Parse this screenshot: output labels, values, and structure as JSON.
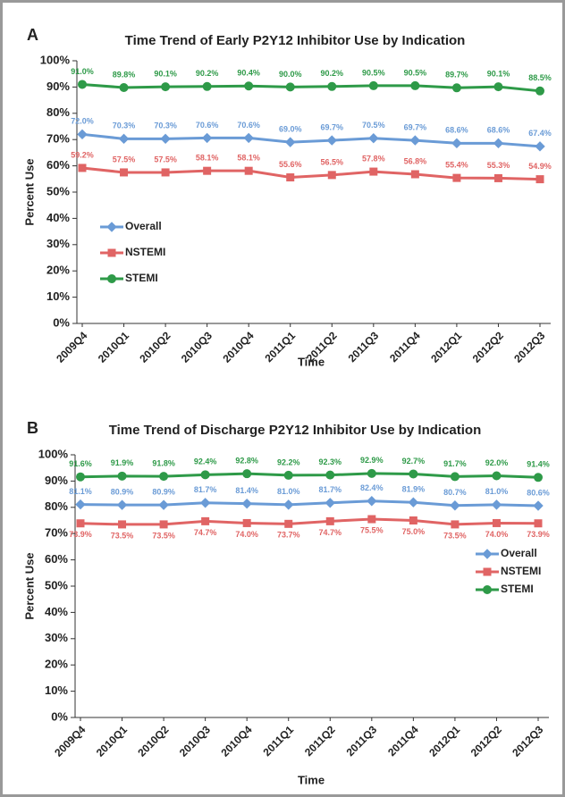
{
  "chart_data": [
    {
      "type": "line",
      "panel": "A",
      "title": "Time Trend of Early P2Y12 Inhibitor Use by Indication",
      "x_label": "Time",
      "y_label": "Percent Use",
      "categories": [
        "2009Q4",
        "2010Q1",
        "2010Q2",
        "2010Q3",
        "2010Q4",
        "2011Q1",
        "2011Q2",
        "2011Q3",
        "2011Q4",
        "2012Q1",
        "2012Q2",
        "2012Q3"
      ],
      "ylim": [
        0,
        100
      ],
      "yticks": [
        {
          "value": 0,
          "label": "0%"
        },
        {
          "value": 10,
          "label": "10%"
        },
        {
          "value": 20,
          "label": "20%"
        },
        {
          "value": 30,
          "label": "30%"
        },
        {
          "value": 40,
          "label": "40%"
        },
        {
          "value": 50,
          "label": "50%"
        },
        {
          "value": 60,
          "label": "60%"
        },
        {
          "value": 70,
          "label": "70%"
        },
        {
          "value": 80,
          "label": "80%"
        },
        {
          "value": 90,
          "label": "90%"
        },
        {
          "value": 100,
          "label": "100%"
        }
      ],
      "legend": "left",
      "series": [
        {
          "name": "Overall",
          "color": "#6a9bd6",
          "marker": "diamond",
          "label_position": "above",
          "values": [
            72.0,
            70.3,
            70.3,
            70.6,
            70.6,
            69.0,
            69.7,
            70.5,
            69.7,
            68.6,
            68.6,
            67.4
          ],
          "value_labels": [
            "72.0%",
            "70.3%",
            "70.3%",
            "70.6%",
            "70.6%",
            "69.0%",
            "69.7%",
            "70.5%",
            "69.7%",
            "68.6%",
            "68.6%",
            "67.4%"
          ]
        },
        {
          "name": "NSTEMI",
          "color": "#e06464",
          "marker": "square",
          "label_position": "above",
          "values": [
            59.2,
            57.5,
            57.5,
            58.1,
            58.1,
            55.6,
            56.5,
            57.8,
            56.8,
            55.4,
            55.3,
            54.9
          ],
          "value_labels": [
            "59.2%",
            "57.5%",
            "57.5%",
            "58.1%",
            "58.1%",
            "55.6%",
            "56.5%",
            "57.8%",
            "56.8%",
            "55.4%",
            "55.3%",
            "54.9%"
          ]
        },
        {
          "name": "STEMI",
          "color": "#2e9a48",
          "marker": "circle",
          "label_position": "above",
          "values": [
            91.0,
            89.8,
            90.1,
            90.2,
            90.4,
            90.0,
            90.2,
            90.5,
            90.5,
            89.7,
            90.1,
            88.5
          ],
          "value_labels": [
            "91.0%",
            "89.8%",
            "90.1%",
            "90.2%",
            "90.4%",
            "90.0%",
            "90.2%",
            "90.5%",
            "90.5%",
            "89.7%",
            "90.1%",
            "88.5%"
          ]
        }
      ]
    },
    {
      "type": "line",
      "panel": "B",
      "title": "Time Trend of Discharge P2Y12 Inhibitor Use by Indication",
      "x_label": "Time",
      "y_label": "Percent Use",
      "categories": [
        "2009Q4",
        "2010Q1",
        "2010Q2",
        "2010Q3",
        "2010Q4",
        "2011Q1",
        "2011Q2",
        "2011Q3",
        "2011Q4",
        "2012Q1",
        "2012Q2",
        "2012Q3"
      ],
      "ylim": [
        0,
        100
      ],
      "yticks": [
        {
          "value": 0,
          "label": "0%"
        },
        {
          "value": 10,
          "label": "10%"
        },
        {
          "value": 20,
          "label": "20%"
        },
        {
          "value": 30,
          "label": "30%"
        },
        {
          "value": 40,
          "label": "40%"
        },
        {
          "value": 50,
          "label": "50%"
        },
        {
          "value": 60,
          "label": "60%"
        },
        {
          "value": 70,
          "label": "70%"
        },
        {
          "value": 80,
          "label": "80%"
        },
        {
          "value": 90,
          "label": "90%"
        },
        {
          "value": 100,
          "label": "100%"
        }
      ],
      "legend": "right",
      "series": [
        {
          "name": "Overall",
          "color": "#6a9bd6",
          "marker": "diamond",
          "label_position": "above",
          "values": [
            81.1,
            80.9,
            80.9,
            81.7,
            81.4,
            81.0,
            81.7,
            82.4,
            81.9,
            80.7,
            81.0,
            80.6
          ],
          "value_labels": [
            "81.1%",
            "80.9%",
            "80.9%",
            "81.7%",
            "81.4%",
            "81.0%",
            "81.7%",
            "82.4%",
            "81.9%",
            "80.7%",
            "81.0%",
            "80.6%"
          ]
        },
        {
          "name": "NSTEMI",
          "color": "#e06464",
          "marker": "square",
          "label_position": "below",
          "values": [
            73.9,
            73.5,
            73.5,
            74.7,
            74.0,
            73.7,
            74.7,
            75.5,
            75.0,
            73.5,
            74.0,
            73.9
          ],
          "value_labels": [
            "73.9%",
            "73.5%",
            "73.5%",
            "74.7%",
            "74.0%",
            "73.7%",
            "74.7%",
            "75.5%",
            "75.0%",
            "73.5%",
            "74.0%",
            "73.9%"
          ]
        },
        {
          "name": "STEMI",
          "color": "#2e9a48",
          "marker": "circle",
          "label_position": "above",
          "values": [
            91.6,
            91.9,
            91.8,
            92.4,
            92.8,
            92.2,
            92.3,
            92.9,
            92.7,
            91.7,
            92.0,
            91.4
          ],
          "value_labels": [
            "91.6%",
            "91.9%",
            "91.8%",
            "92.4%",
            "92.8%",
            "92.2%",
            "92.3%",
            "92.9%",
            "92.7%",
            "91.7%",
            "92.0%",
            "91.4%"
          ]
        }
      ]
    }
  ]
}
